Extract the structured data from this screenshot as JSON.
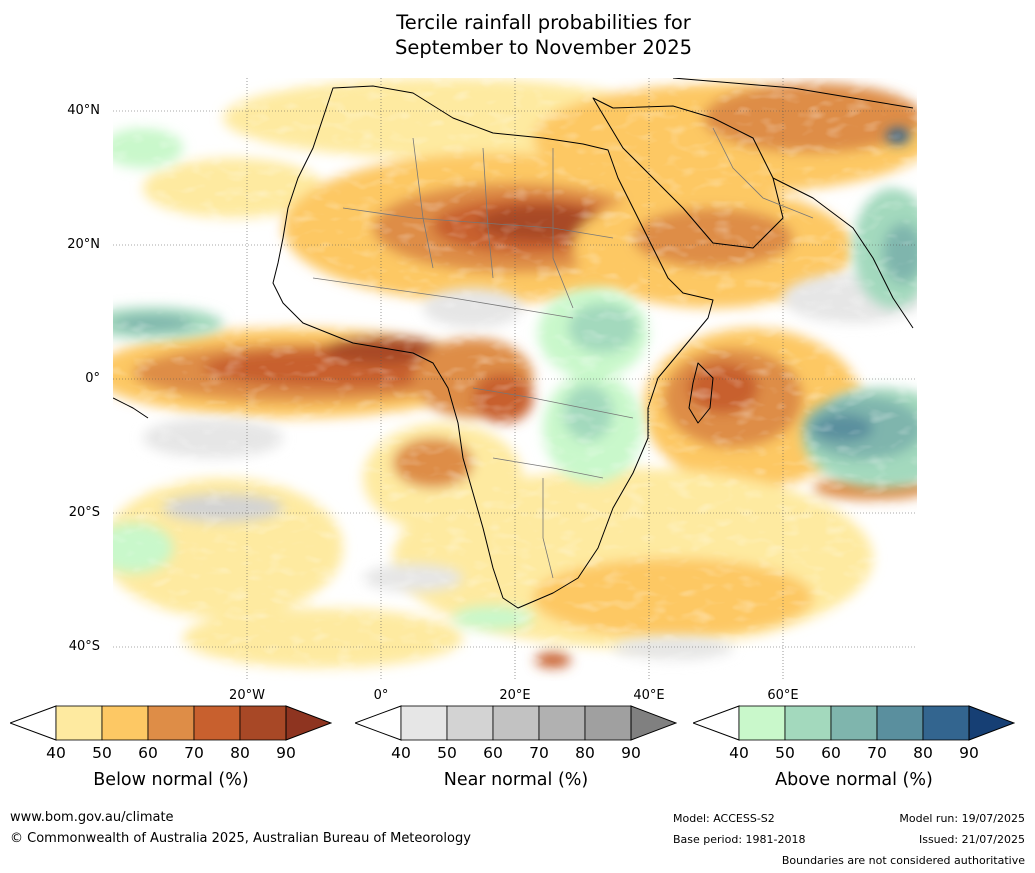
{
  "title": {
    "line1": "Tercile rainfall probabilities for",
    "line2": "September to November 2025"
  },
  "map": {
    "lat_labels": [
      "40°N",
      "20°N",
      "0°",
      "20°S",
      "40°S"
    ],
    "lon_labels": [
      "20°W",
      "0°",
      "20°E",
      "40°E",
      "60°E"
    ],
    "region": "Africa"
  },
  "colorbars": [
    {
      "id": "below",
      "title": "Below normal (%)",
      "ticks": [
        "40",
        "50",
        "60",
        "70",
        "80",
        "90"
      ],
      "colors": [
        "#ffffff",
        "#feeaa0",
        "#fdc864",
        "#de8d47",
        "#c8602e",
        "#a84826",
        "#8e3420"
      ]
    },
    {
      "id": "near",
      "title": "Near normal (%)",
      "ticks": [
        "40",
        "50",
        "60",
        "70",
        "80",
        "90"
      ],
      "colors": [
        "#ffffff",
        "#e6e6e6",
        "#d3d3d3",
        "#c2c2c2",
        "#b1b1b1",
        "#a0a0a0",
        "#808080"
      ]
    },
    {
      "id": "above",
      "title": "Above normal (%)",
      "ticks": [
        "40",
        "50",
        "60",
        "70",
        "80",
        "90"
      ],
      "colors": [
        "#ffffff",
        "#c9f8cb",
        "#a3d9bd",
        "#7fb5ad",
        "#5a8f9e",
        "#33658f",
        "#163f74"
      ]
    }
  ],
  "footer": {
    "website": "www.bom.gov.au/climate",
    "copyright": "© Commonwealth of Australia 2025, Australian Bureau of Meteorology",
    "model": "Model: ACCESS-S2",
    "base_period": "Base period: 1981-2018",
    "model_run": "Model run: 19/07/2025",
    "issued": "Issued: 21/07/2025",
    "disclaimer": "Boundaries are not considered authoritative"
  }
}
